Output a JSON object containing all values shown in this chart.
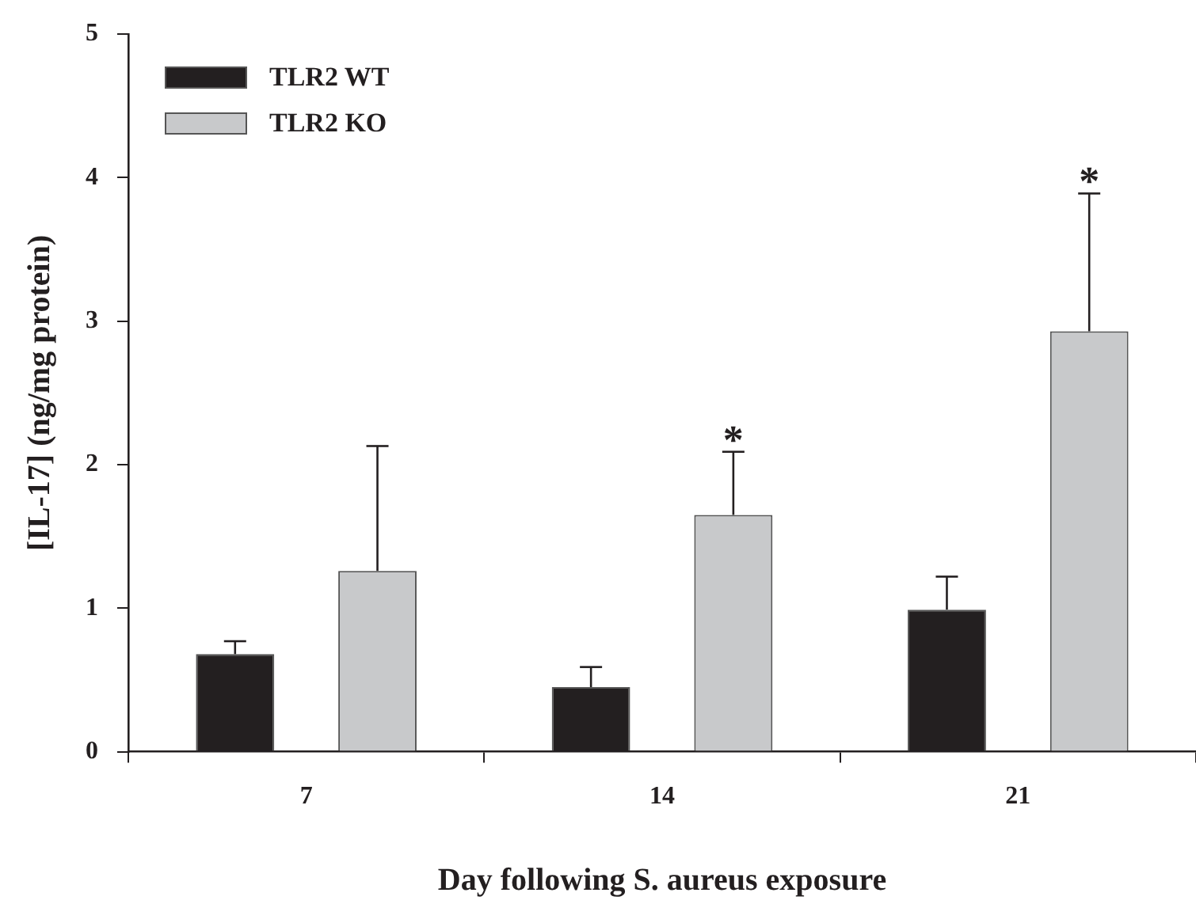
{
  "chart_data": {
    "type": "bar",
    "xlabel": "Day following S. aureus exposure",
    "ylabel": "[IL-17] (ng/mg protein)",
    "categories": [
      "7",
      "14",
      "21"
    ],
    "series": [
      {
        "name": "TLR2 WT",
        "color": "#231f20",
        "values": [
          0.68,
          0.45,
          0.99
        ],
        "errors": [
          [
            0.68,
            0.77
          ],
          [
            0.45,
            0.59
          ],
          [
            0.99,
            1.22
          ]
        ]
      },
      {
        "name": "TLR2 KO",
        "color": "#c8c9cb",
        "values": [
          1.26,
          1.65,
          2.93
        ],
        "errors": [
          [
            1.26,
            2.13
          ],
          [
            1.65,
            2.09
          ],
          [
            2.93,
            3.89
          ]
        ],
        "value_labels": [
          null,
          "*",
          "*"
        ]
      }
    ],
    "ylim": [
      0,
      5
    ],
    "yticks": [
      0,
      1,
      2,
      3,
      4,
      5
    ],
    "grid": false,
    "legend": "top left"
  }
}
